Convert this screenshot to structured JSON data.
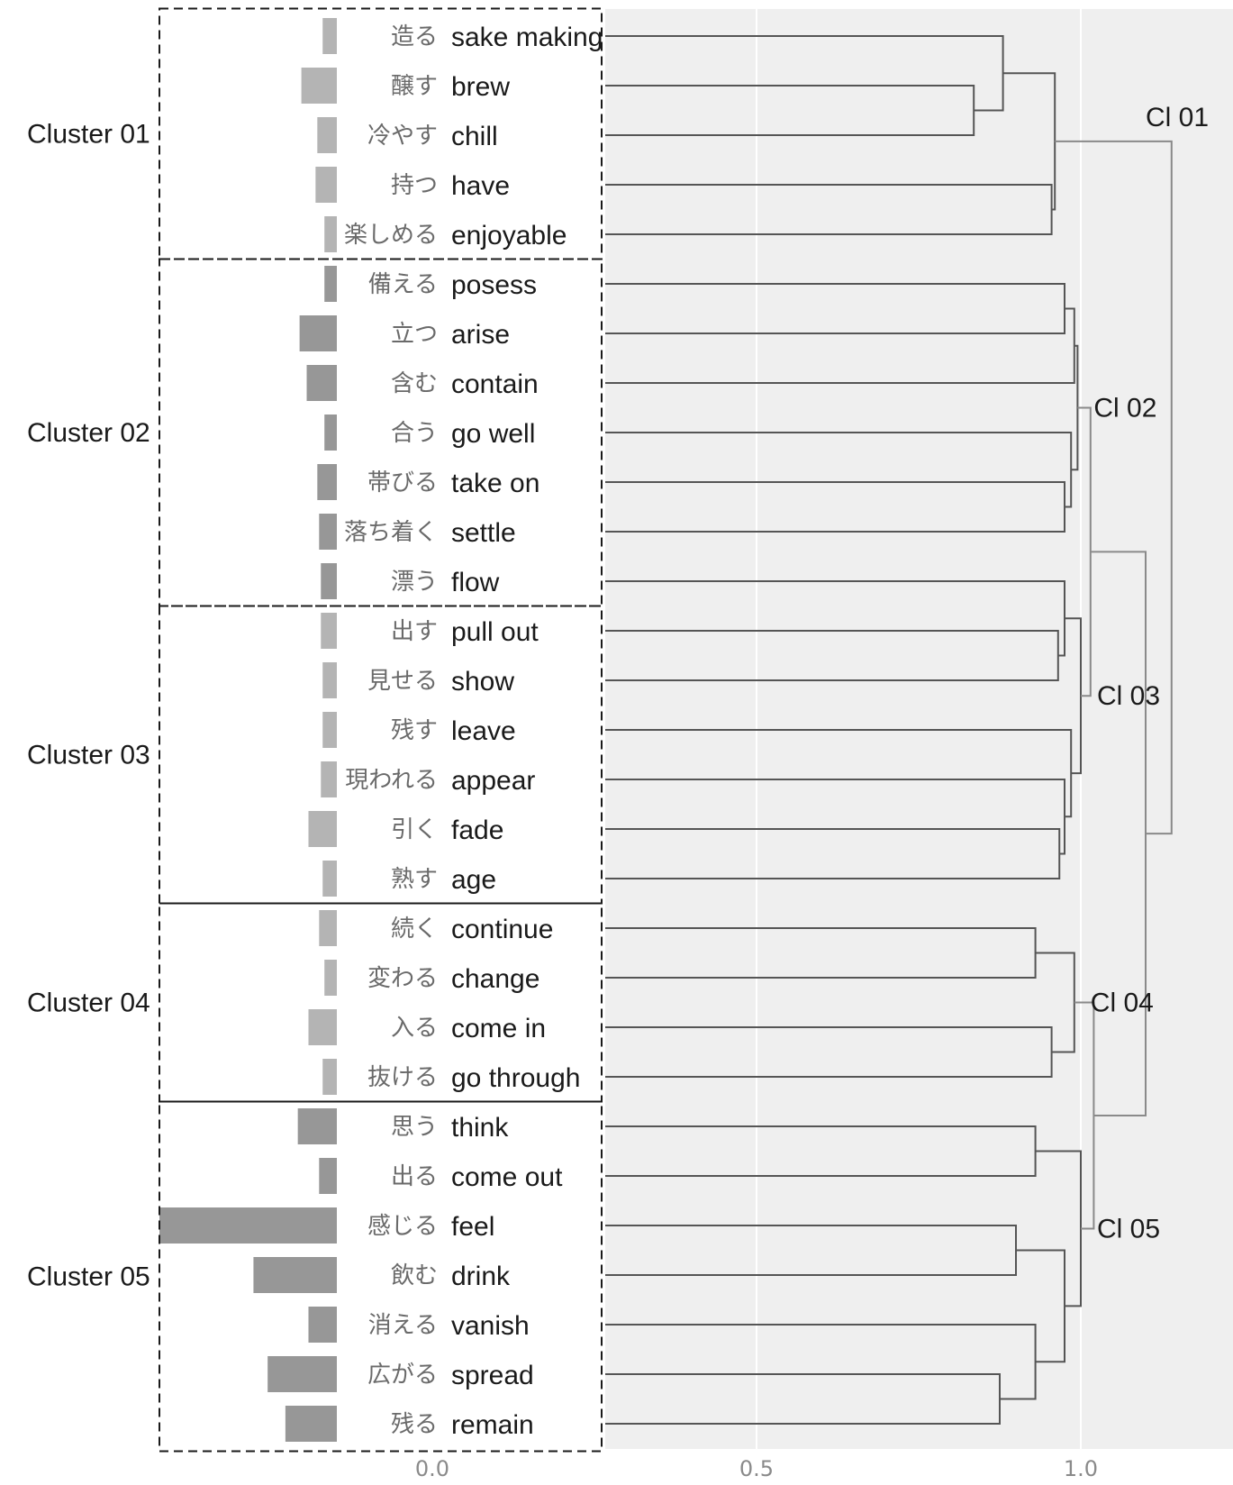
{
  "chart_data": {
    "type": "dendrogram",
    "x_axis": {
      "ticks": [
        "0.0",
        "0.5",
        "1.0"
      ],
      "tick_values": [
        0.0,
        0.5,
        1.0
      ],
      "range": [
        0.0,
        1.2
      ]
    },
    "words": [
      {
        "jp": "造る",
        "en": "sake making",
        "bar": 0.08,
        "cluster": 1
      },
      {
        "jp": "醸す",
        "en": "brew",
        "bar": 0.2,
        "cluster": 1
      },
      {
        "jp": "冷やす",
        "en": "chill",
        "bar": 0.11,
        "cluster": 1
      },
      {
        "jp": "持つ",
        "en": "have",
        "bar": 0.12,
        "cluster": 1
      },
      {
        "jp": "楽しめる",
        "en": "enjoyable",
        "bar": 0.07,
        "cluster": 1
      },
      {
        "jp": "備える",
        "en": "posess",
        "bar": 0.07,
        "cluster": 2
      },
      {
        "jp": "立つ",
        "en": "arise",
        "bar": 0.21,
        "cluster": 2
      },
      {
        "jp": "含む",
        "en": "contain",
        "bar": 0.17,
        "cluster": 2
      },
      {
        "jp": "合う",
        "en": "go well",
        "bar": 0.07,
        "cluster": 2
      },
      {
        "jp": "帯びる",
        "en": "take on",
        "bar": 0.11,
        "cluster": 2
      },
      {
        "jp": "落ち着く",
        "en": "settle",
        "bar": 0.1,
        "cluster": 2
      },
      {
        "jp": "漂う",
        "en": "flow",
        "bar": 0.09,
        "cluster": 2
      },
      {
        "jp": "出す",
        "en": "pull out",
        "bar": 0.09,
        "cluster": 3
      },
      {
        "jp": "見せる",
        "en": "show",
        "bar": 0.08,
        "cluster": 3
      },
      {
        "jp": "残す",
        "en": "leave",
        "bar": 0.08,
        "cluster": 3
      },
      {
        "jp": "現われる",
        "en": "appear",
        "bar": 0.09,
        "cluster": 3
      },
      {
        "jp": "引く",
        "en": "fade",
        "bar": 0.16,
        "cluster": 3
      },
      {
        "jp": "熟す",
        "en": "age",
        "bar": 0.08,
        "cluster": 3
      },
      {
        "jp": "続く",
        "en": "continue",
        "bar": 0.1,
        "cluster": 4
      },
      {
        "jp": "変わる",
        "en": "change",
        "bar": 0.07,
        "cluster": 4
      },
      {
        "jp": "入る",
        "en": "come in",
        "bar": 0.16,
        "cluster": 4
      },
      {
        "jp": "抜ける",
        "en": "go through",
        "bar": 0.08,
        "cluster": 4
      },
      {
        "jp": "思う",
        "en": "think",
        "bar": 0.22,
        "cluster": 5
      },
      {
        "jp": "出る",
        "en": "come out",
        "bar": 0.1,
        "cluster": 5
      },
      {
        "jp": "感じる",
        "en": "feel",
        "bar": 1.0,
        "cluster": 5
      },
      {
        "jp": "飲む",
        "en": "drink",
        "bar": 0.47,
        "cluster": 5
      },
      {
        "jp": "消える",
        "en": "vanish",
        "bar": 0.16,
        "cluster": 5
      },
      {
        "jp": "広がる",
        "en": "spread",
        "bar": 0.39,
        "cluster": 5
      },
      {
        "jp": "残る",
        "en": "remain",
        "bar": 0.29,
        "cluster": 5
      }
    ],
    "clusters": [
      {
        "id": 1,
        "label": "Cluster 01",
        "short": "Cl 01",
        "color": "#b4b4b4"
      },
      {
        "id": 2,
        "label": "Cluster 02",
        "short": "Cl 02",
        "color": "#979797"
      },
      {
        "id": 3,
        "label": "Cluster 03",
        "short": "Cl 03",
        "color": "#b4b4b4"
      },
      {
        "id": 4,
        "label": "Cluster 04",
        "short": "Cl 04",
        "color": "#b4b4b4"
      },
      {
        "id": 5,
        "label": "Cluster 05",
        "short": "Cl 05",
        "color": "#979797"
      }
    ],
    "merges": [
      {
        "a": "L1",
        "b": "L2",
        "h": 0.835,
        "id": "M01"
      },
      {
        "a": "L0",
        "b": "M01",
        "h": 0.88,
        "id": "M02"
      },
      {
        "a": "L3",
        "b": "L4",
        "h": 0.955,
        "id": "M03"
      },
      {
        "a": "M02",
        "b": "M03",
        "h": 0.96,
        "id": "C1"
      },
      {
        "a": "L5",
        "b": "L6",
        "h": 0.975,
        "id": "M04"
      },
      {
        "a": "M04",
        "b": "L7",
        "h": 0.99,
        "id": "M05"
      },
      {
        "a": "L9",
        "b": "L10",
        "h": 0.975,
        "id": "M06"
      },
      {
        "a": "L8",
        "b": "M06",
        "h": 0.985,
        "id": "M07"
      },
      {
        "a": "M05",
        "b": "M07",
        "h": 0.995,
        "id": "C2"
      },
      {
        "a": "L12",
        "b": "L13",
        "h": 0.965,
        "id": "M08"
      },
      {
        "a": "L11",
        "b": "M08",
        "h": 0.975,
        "id": "M09"
      },
      {
        "a": "L16",
        "b": "L17",
        "h": 0.967,
        "id": "M10"
      },
      {
        "a": "L15",
        "b": "M10",
        "h": 0.975,
        "id": "M11"
      },
      {
        "a": "L14",
        "b": "M11",
        "h": 0.985,
        "id": "M12"
      },
      {
        "a": "M09",
        "b": "M12",
        "h": 1.0,
        "id": "C3"
      },
      {
        "a": "C2",
        "b": "C3",
        "h": 1.015,
        "id": "C23"
      },
      {
        "a": "L18",
        "b": "L19",
        "h": 0.93,
        "id": "M13"
      },
      {
        "a": "L20",
        "b": "L21",
        "h": 0.955,
        "id": "M14"
      },
      {
        "a": "M13",
        "b": "M14",
        "h": 0.99,
        "id": "C4"
      },
      {
        "a": "L22",
        "b": "L23",
        "h": 0.93,
        "id": "M15"
      },
      {
        "a": "L27",
        "b": "L28",
        "h": 0.875,
        "id": "M16"
      },
      {
        "a": "L26",
        "b": "M16",
        "h": 0.93,
        "id": "M17"
      },
      {
        "a": "L24",
        "b": "L25",
        "h": 0.9,
        "id": "M18"
      },
      {
        "a": "M18",
        "b": "M17",
        "h": 0.975,
        "id": "M19"
      },
      {
        "a": "M15",
        "b": "M19",
        "h": 1.0,
        "id": "C5"
      },
      {
        "a": "C4",
        "b": "C5",
        "h": 1.02,
        "id": "C45"
      },
      {
        "a": "C23",
        "b": "C45",
        "h": 1.1,
        "id": "C2345"
      },
      {
        "a": "C1",
        "b": "C2345",
        "h": 1.14,
        "id": "ROOT"
      }
    ]
  }
}
